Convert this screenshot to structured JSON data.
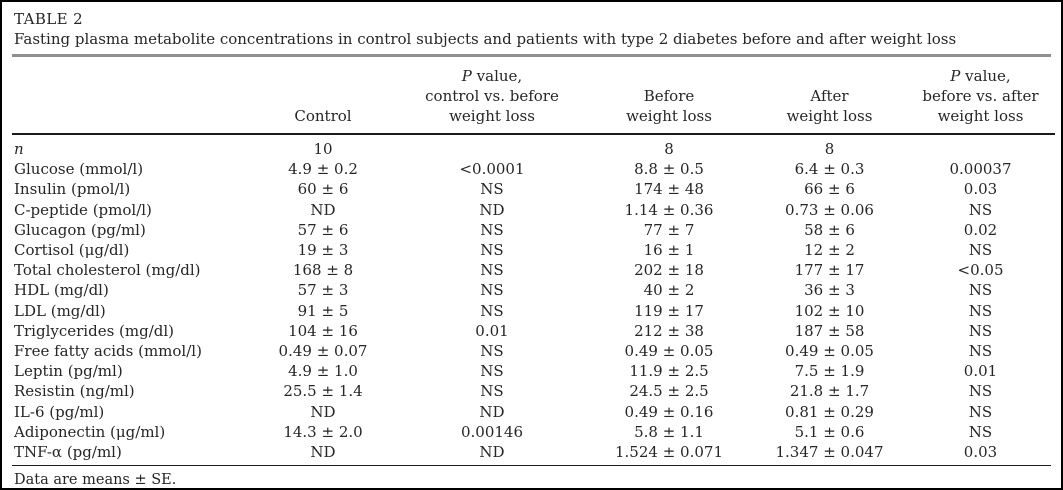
{
  "table_label": "TABLE 2",
  "table_caption": "Fasting plasma metabolite concentrations in control subjects and patients with type 2 diabetes before and after weight loss",
  "footnote": "Data are means ± SE.",
  "chart_data": {
    "type": "table",
    "title": "TABLE 2 — Fasting plasma metabolite concentrations in control subjects and patients with type 2 diabetes before and after weight loss",
    "columns": [
      {
        "key": "label",
        "lines": [
          " "
        ]
      },
      {
        "key": "control",
        "lines": [
          "Control"
        ]
      },
      {
        "key": "p_control_vs_before",
        "lines": [
          "P value,",
          "control vs. before",
          "weight loss"
        ]
      },
      {
        "key": "before_weight_loss",
        "lines": [
          "Before",
          "weight loss"
        ]
      },
      {
        "key": "after_weight_loss",
        "lines": [
          "After",
          "weight loss"
        ]
      },
      {
        "key": "p_before_vs_after",
        "lines": [
          "P value,",
          "before vs. after",
          "weight loss"
        ]
      }
    ],
    "rows": [
      {
        "label": "n",
        "italic_label": true,
        "values": [
          "10",
          "",
          "8",
          "8",
          ""
        ]
      },
      {
        "label": "Glucose (mmol/l)",
        "italic_label": false,
        "values": [
          "4.9 ± 0.2",
          "<0.0001",
          "8.8 ± 0.5",
          "6.4 ± 0.3",
          "0.00037"
        ]
      },
      {
        "label": "Insulin (pmol/l)",
        "italic_label": false,
        "values": [
          "60 ± 6",
          "NS",
          "174 ± 48",
          "66 ± 6",
          "0.03"
        ]
      },
      {
        "label": "C-peptide (pmol/l)",
        "italic_label": false,
        "values": [
          "ND",
          "ND",
          "1.14 ± 0.36",
          "0.73 ± 0.06",
          "NS"
        ]
      },
      {
        "label": "Glucagon (pg/ml)",
        "italic_label": false,
        "values": [
          "57 ± 6",
          "NS",
          "77 ± 7",
          "58 ± 6",
          "0.02"
        ]
      },
      {
        "label": "Cortisol (μg/dl)",
        "italic_label": false,
        "values": [
          "19 ± 3",
          "NS",
          "16 ± 1",
          "12 ± 2",
          "NS"
        ]
      },
      {
        "label": "Total cholesterol (mg/dl)",
        "italic_label": false,
        "values": [
          "168 ± 8",
          "NS",
          "202 ± 18",
          "177 ± 17",
          "<0.05"
        ]
      },
      {
        "label": "HDL (mg/dl)",
        "italic_label": false,
        "values": [
          "57 ± 3",
          "NS",
          "40 ± 2",
          "36 ± 3",
          "NS"
        ]
      },
      {
        "label": "LDL (mg/dl)",
        "italic_label": false,
        "values": [
          "91 ± 5",
          "NS",
          "119 ± 17",
          "102 ± 10",
          "NS"
        ]
      },
      {
        "label": "Triglycerides (mg/dl)",
        "italic_label": false,
        "values": [
          "104 ± 16",
          "0.01",
          "212 ± 38",
          "187 ± 58",
          "NS"
        ]
      },
      {
        "label": "Free fatty acids (mmol/l)",
        "italic_label": false,
        "values": [
          "0.49 ± 0.07",
          "NS",
          "0.49 ± 0.05",
          "0.49 ± 0.05",
          "NS"
        ]
      },
      {
        "label": "Leptin (pg/ml)",
        "italic_label": false,
        "values": [
          "4.9 ± 1.0",
          "NS",
          "11.9 ± 2.5",
          "7.5 ± 1.9",
          "0.01"
        ]
      },
      {
        "label": "Resistin (ng/ml)",
        "italic_label": false,
        "values": [
          "25.5 ± 1.4",
          "NS",
          "24.5 ± 2.5",
          "21.8 ± 1.7",
          "NS"
        ]
      },
      {
        "label": "IL-6 (pg/ml)",
        "italic_label": false,
        "values": [
          "ND",
          "ND",
          "0.49 ± 0.16",
          "0.81 ± 0.29",
          "NS"
        ]
      },
      {
        "label": "Adiponectin (μg/ml)",
        "italic_label": false,
        "values": [
          "14.3 ± 2.0",
          "0.00146",
          "5.8 ± 1.1",
          "5.1 ± 0.6",
          "NS"
        ]
      },
      {
        "label": "TNF-α (pg/ml)",
        "italic_label": false,
        "values": [
          "ND",
          "ND",
          "1.524 ± 0.071",
          "1.347 ± 0.047",
          "0.03"
        ]
      }
    ],
    "colors": {
      "text": "#262626",
      "thick_divider": "#8f8f8f",
      "rule": "#1c1c1c",
      "border": "#000000"
    }
  }
}
